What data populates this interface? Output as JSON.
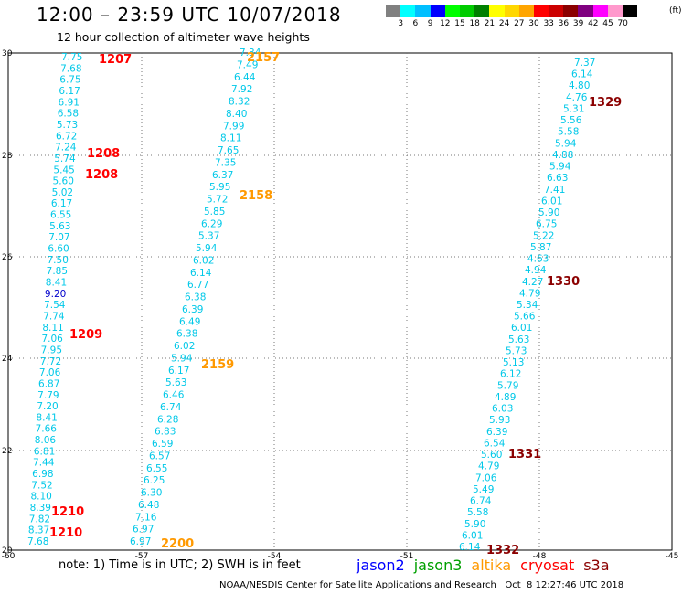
{
  "header": {
    "title": "12:00 – 23:59 UTC 10/07/2018",
    "subtitle": "12 hour collection of altimeter wave heights"
  },
  "legend": {
    "unit": "(ft)",
    "labels": [
      "3",
      "6",
      "9",
      "12",
      "15",
      "18",
      "21",
      "24",
      "27",
      "30",
      "33",
      "36",
      "39",
      "42",
      "45",
      "70"
    ],
    "colors": [
      "#808080",
      "#00ffff",
      "#00bfff",
      "#0000ff",
      "#00ff00",
      "#00cc00",
      "#008000",
      "#ffff00",
      "#ffd700",
      "#ffa500",
      "#ff0000",
      "#cc0000",
      "#8b0000",
      "#800080",
      "#ff00ff",
      "#ff99cc",
      "#000000"
    ]
  },
  "axes": {
    "x_labels": [
      "-60",
      "-57",
      "-54",
      "-51",
      "-48",
      "-45"
    ],
    "y_labels": [
      "30",
      "28",
      "26",
      "24",
      "22",
      "20"
    ]
  },
  "satellites": {
    "jason2": {
      "label": "jason2",
      "color": "#0000ff"
    },
    "jason3": {
      "label": "jason3",
      "color": "#00a000"
    },
    "altika": {
      "label": "altika",
      "color": "#ff9900"
    },
    "cryosat": {
      "label": "cryosat",
      "color": "#ff0000"
    },
    "s3a": {
      "label": "s3a",
      "color": "#8b0000"
    }
  },
  "footer": {
    "note": "note: 1) Time is in UTC; 2) SWH is in feet",
    "credit": "NOAA/NESDIS Center for Satellite Applications and Research   Oct  8 12:27:46 UTC 2018"
  },
  "tracks": [
    {
      "name": "track-west",
      "values": [
        "7.75",
        "7.68",
        "6.75",
        "6.17",
        "6.91",
        "6.58",
        "5.73",
        "6.72",
        "7.24",
        "5.74",
        "5.45",
        "5.60",
        "5.02",
        "6.17",
        "6.55",
        "5.63",
        "7.07",
        "6.60",
        "7.50",
        "7.85",
        "8.41",
        "9.20",
        "7.54",
        "7.74",
        "8.11",
        "7.06",
        "7.95",
        "7.72",
        "7.06",
        "6.87",
        "7.79",
        "7.20",
        "8.41",
        "7.66",
        "8.06",
        "6.81",
        "7.44",
        "6.98",
        "7.52",
        "8.10",
        "8.39",
        "7.82",
        "8.37",
        "7.68"
      ]
    },
    {
      "name": "track-mid",
      "values": [
        "7.34",
        "7.49",
        "6.44",
        "7.92",
        "8.32",
        "8.40",
        "7.99",
        "8.11",
        "7.65",
        "7.35",
        "6.37",
        "5.95",
        "5.72",
        "5.85",
        "6.29",
        "5.37",
        "5.94",
        "6.02",
        "6.14",
        "6.77",
        "6.38",
        "6.39",
        "6.49",
        "6.38",
        "6.02",
        "5.94",
        "6.17",
        "5.63",
        "6.46",
        "6.74",
        "6.28",
        "6.83",
        "6.59",
        "6.57",
        "6.55",
        "6.25",
        "6.30",
        "6.48",
        "7.16",
        "6.97",
        "6.97"
      ]
    },
    {
      "name": "track-east",
      "values": [
        "7.37",
        "6.14",
        "4.80",
        "4.76",
        "5.31",
        "5.56",
        "5.58",
        "5.94",
        "4.88",
        "5.94",
        "6.63",
        "7.41",
        "6.01",
        "5.90",
        "6.75",
        "5.22",
        "5.87",
        "4.63",
        "4.94",
        "4.27",
        "4.79",
        "5.34",
        "5.66",
        "6.01",
        "5.63",
        "5.73",
        "5.13",
        "6.12",
        "5.79",
        "4.89",
        "6.03",
        "5.93",
        "6.39",
        "6.54",
        "5.60",
        "4.79",
        "7.06",
        "5.49",
        "6.74",
        "5.58",
        "5.90",
        "6.01",
        "6.14"
      ]
    }
  ],
  "times": [
    {
      "label": "1207",
      "sat": "cryosat"
    },
    {
      "label": "1208",
      "sat": "cryosat"
    },
    {
      "label": "1208",
      "sat": "cryosat"
    },
    {
      "label": "1209",
      "sat": "cryosat"
    },
    {
      "label": "1210",
      "sat": "cryosat"
    },
    {
      "label": "1210",
      "sat": "cryosat"
    },
    {
      "label": "2157",
      "sat": "altika"
    },
    {
      "label": "2158",
      "sat": "altika"
    },
    {
      "label": "2159",
      "sat": "altika"
    },
    {
      "label": "2200",
      "sat": "altika"
    },
    {
      "label": "1329",
      "sat": "s3a"
    },
    {
      "label": "1330",
      "sat": "s3a"
    },
    {
      "label": "1331",
      "sat": "s3a"
    },
    {
      "label": "1332",
      "sat": "s3a"
    }
  ]
}
